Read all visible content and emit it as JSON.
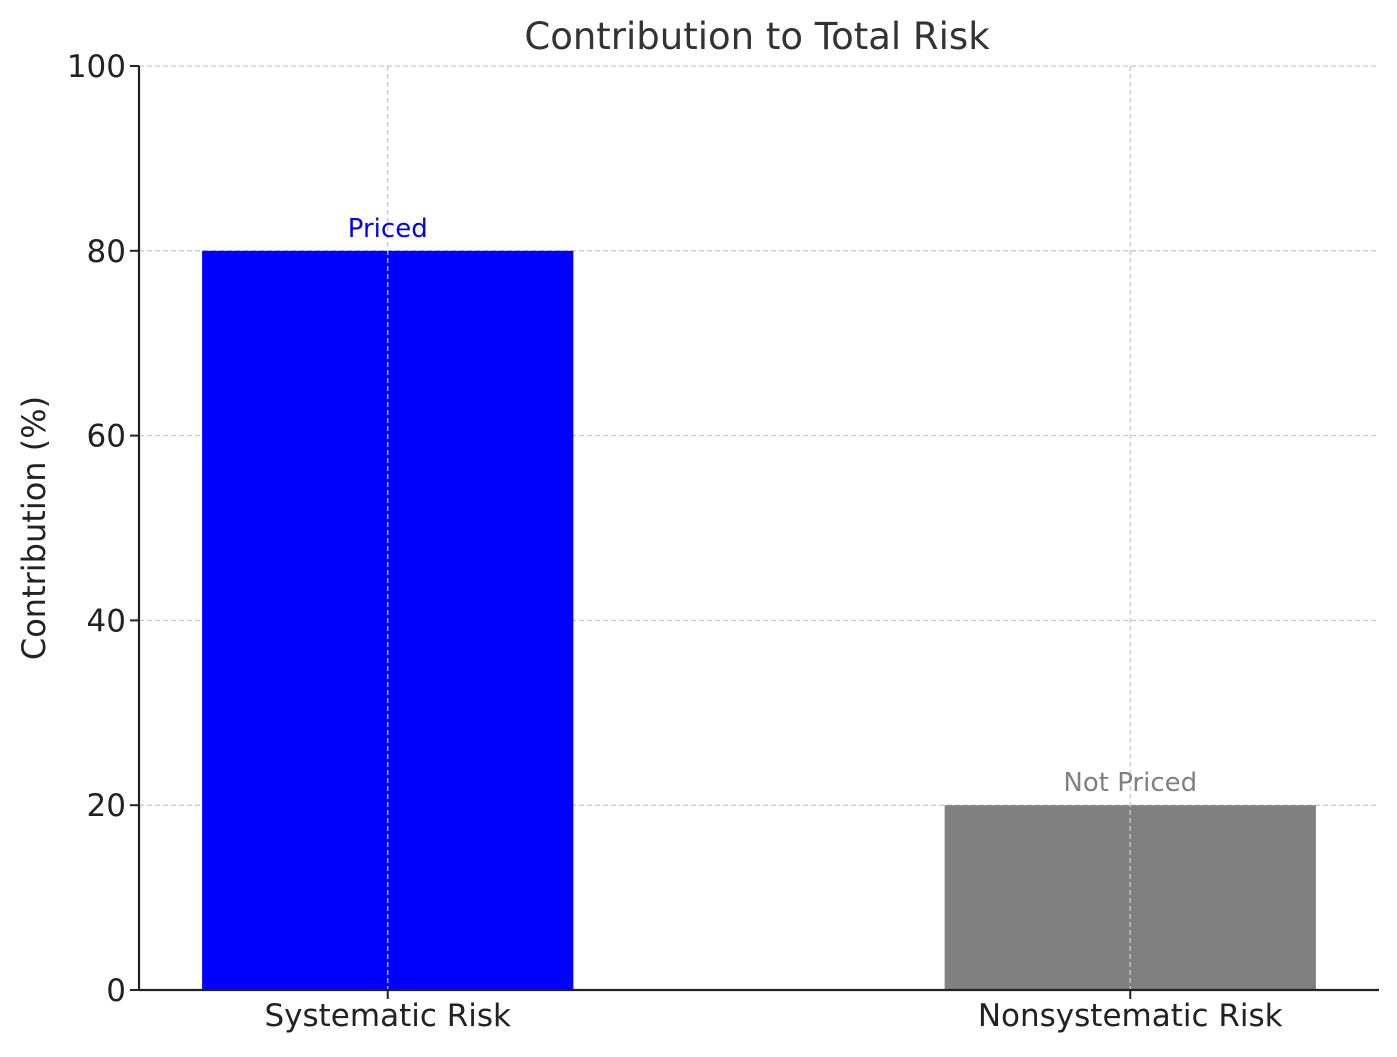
{
  "chart_data": {
    "type": "bar",
    "title": "Contribution to Total Risk",
    "xlabel": "",
    "ylabel": "Contribution (%)",
    "categories": [
      "Systematic Risk",
      "Nonsystematic Risk"
    ],
    "values": [
      80,
      20
    ],
    "bar_annotations": [
      "Priced",
      "Not Priced"
    ],
    "bar_colors": [
      "#0000ff",
      "#808080"
    ],
    "annotation_colors": [
      "#0000ff",
      "#808080"
    ],
    "ylim": [
      0,
      100
    ],
    "yticks": [
      0,
      20,
      40,
      60,
      80,
      100
    ],
    "grid": true,
    "grid_style": "dashed",
    "legend": "none"
  }
}
